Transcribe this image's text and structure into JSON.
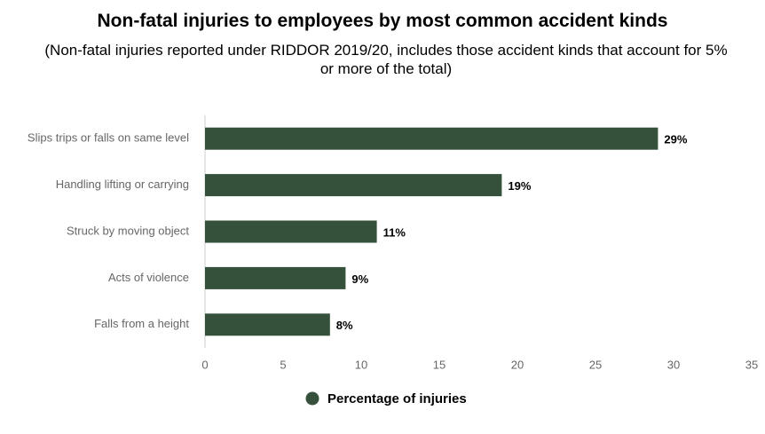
{
  "chart_data": {
    "type": "bar",
    "orientation": "horizontal",
    "title": "Non-fatal injuries to employees by most common accident kinds",
    "subtitle": "(Non-fatal injuries reported under RIDDOR 2019/20, includes those accident kinds that account for 5% or more of the total)",
    "categories": [
      "Slips trips or falls on same level",
      "Handling lifting or carrying",
      "Struck by moving object",
      "Acts of violence",
      "Falls from a height"
    ],
    "series": [
      {
        "name": "Percentage of injuries",
        "color": "#35513b",
        "values": [
          29,
          19,
          11,
          9,
          8
        ],
        "value_labels": [
          "29%",
          "19%",
          "11%",
          "9%",
          "8%"
        ]
      }
    ],
    "xlim": [
      0,
      35
    ],
    "xticks": [
      0,
      5,
      10,
      15,
      20,
      25,
      30,
      35
    ],
    "legend": "bottom"
  }
}
